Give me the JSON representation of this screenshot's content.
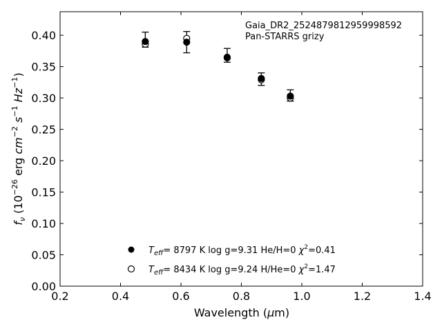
{
  "chart_data": {
    "type": "scatter",
    "xlabel": "Wavelength (μm)",
    "ylabel": "f_ν (10^−26 erg cm^−2 s^−1 Hz^−1)",
    "xlim": [
      0.2,
      1.4
    ],
    "ylim": [
      0.0,
      0.4375
    ],
    "x_ticks": [
      "0.2",
      "0.4",
      "0.6",
      "0.8",
      "1.0",
      "1.2",
      "1.4"
    ],
    "y_ticks": [
      "0.00",
      "0.05",
      "0.10",
      "0.15",
      "0.20",
      "0.25",
      "0.30",
      "0.35",
      "0.40"
    ],
    "annotation": [
      "Gaia_DR2_2524879812959998592",
      "Pan-STARRS grizy"
    ],
    "observed": {
      "x": [
        0.482,
        0.619,
        0.753,
        0.866,
        0.962
      ],
      "y": [
        0.393,
        0.389,
        0.368,
        0.33,
        0.304
      ],
      "yerr": [
        0.012,
        0.017,
        0.011,
        0.01,
        0.009
      ]
    },
    "series": [
      {
        "name": "Teff= 8797 K log g=9.31 He/H=0 χ2=0.41",
        "marker": "filled-circle",
        "x": [
          0.482,
          0.619,
          0.753,
          0.866,
          0.962
        ],
        "y": [
          0.39,
          0.389,
          0.365,
          0.331,
          0.303
        ]
      },
      {
        "name": "Teff= 8434 K log g=9.24 H/He=0 χ2=1.47",
        "marker": "open-circle",
        "x": [
          0.482,
          0.619,
          0.753,
          0.866,
          0.962
        ],
        "y": [
          0.386,
          0.395,
          0.364,
          0.329,
          0.3
        ]
      }
    ],
    "legend": {
      "placement": "lower-center",
      "entries": [
        {
          "teff_value": "8797 K",
          "logg": "log g=9.31",
          "comp": "He/H=0",
          "chi2": "=0.41"
        },
        {
          "teff_value": "8434 K",
          "logg": "log g=9.24",
          "comp": "H/He=0",
          "chi2": "=1.47"
        }
      ]
    },
    "colors": {
      "marker": "#000000",
      "background": "#ffffff"
    }
  }
}
